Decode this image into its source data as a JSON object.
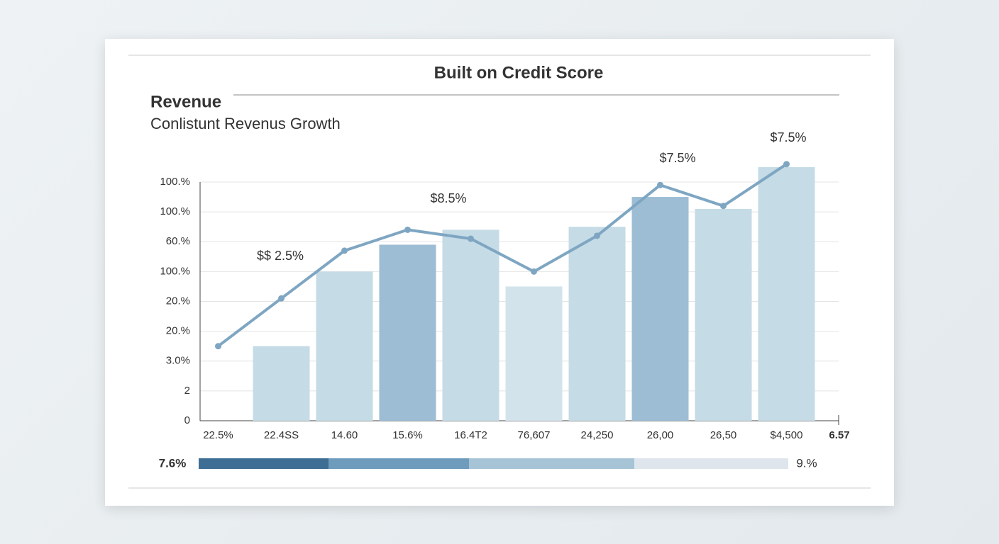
{
  "header": {
    "title": "Built on Credit Score",
    "heading": "Revenue",
    "subtitle": "Conlistunt Revenus Growth"
  },
  "chart_data": {
    "type": "bar-line",
    "categories": [
      "22.5%",
      "22.4SS",
      "14.60",
      "15.6%",
      "16.4T2",
      "76,607",
      "24,250",
      "26,00",
      "26,50",
      "$4,500"
    ],
    "x_end_label": "6.57",
    "ylim": [
      0,
      8
    ],
    "yticks": [
      0,
      {
        "value": 1,
        "label": "2"
      },
      {
        "value": 2,
        "label": "3.0%"
      },
      {
        "value": 3,
        "label": "20.%"
      },
      {
        "value": 4,
        "label": "20.%"
      },
      {
        "value": 5,
        "label": "100.%"
      },
      {
        "value": 6,
        "label": "60.%"
      },
      {
        "value": 7,
        "label": "100.%"
      },
      {
        "value": 8,
        "label": "100.%"
      }
    ],
    "grid": true,
    "bars": {
      "values": [
        null,
        2.5,
        5.0,
        5.9,
        6.4,
        4.5,
        6.5,
        7.5,
        7.1,
        8.5
      ],
      "colors": [
        "#c5dbe6",
        "#c5dbe6",
        "#c5dbe6",
        "#9dbdd5",
        "#c5dbe6",
        "#d3e3ec",
        "#c5dbe6",
        "#9dbdd5",
        "#c5dbe6",
        "#c5dbe6"
      ]
    },
    "line": {
      "color": "#7ea6c2",
      "values": [
        2.5,
        4.1,
        5.7,
        6.4,
        6.1,
        5.0,
        6.2,
        7.9,
        7.2,
        8.6
      ]
    },
    "annotations": [
      "$$ 2.5%",
      "$8.5%",
      "$7.5%",
      "$7.5%"
    ]
  },
  "footer": {
    "left": "7.6%",
    "right": "9.%",
    "segment_colors": [
      "#3f6e94",
      "#6f9cbd",
      "#a6c4d6",
      "#dfe5ec"
    ]
  }
}
